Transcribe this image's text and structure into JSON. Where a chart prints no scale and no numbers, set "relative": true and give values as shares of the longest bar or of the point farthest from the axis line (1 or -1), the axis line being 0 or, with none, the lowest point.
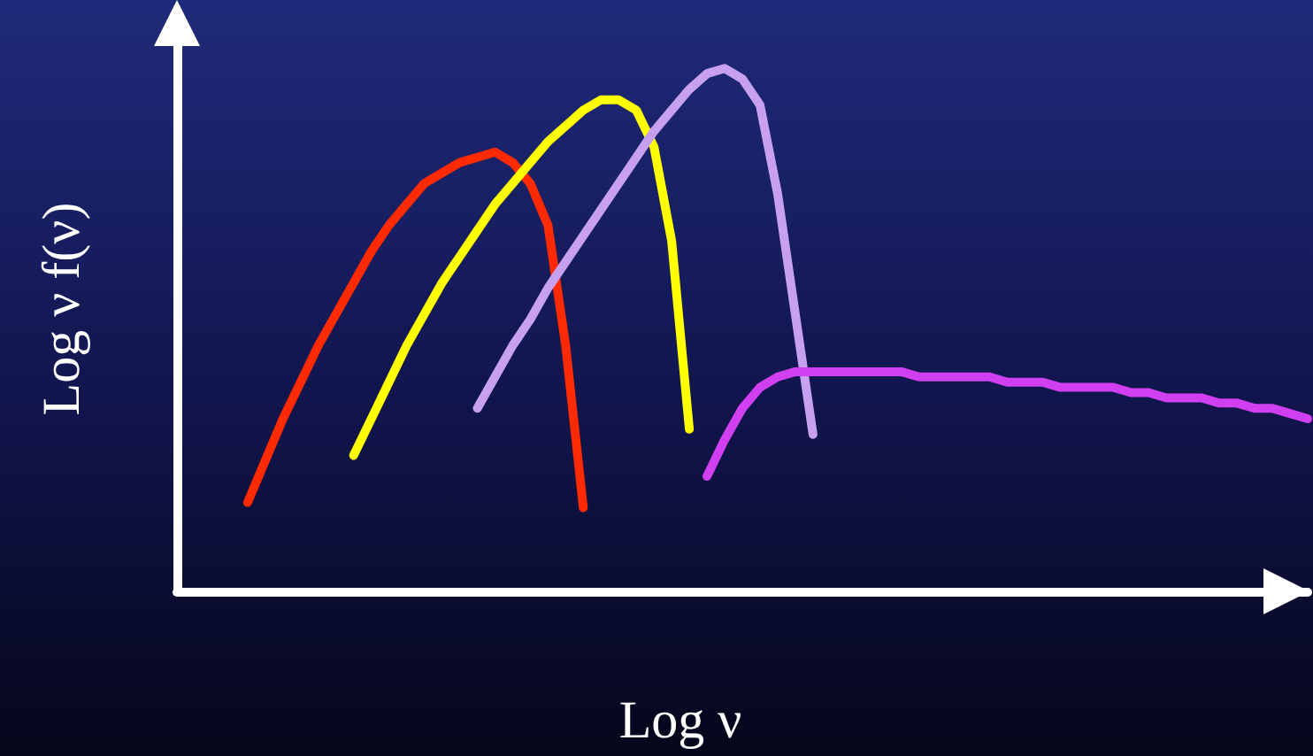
{
  "chart_data": {
    "type": "line",
    "relative": true,
    "xlabel": "Log ν",
    "ylabel": "Log ν f(ν)",
    "marker": "none",
    "categories": [
      null,
      null,
      null,
      null,
      null,
      null,
      null,
      null,
      null,
      null,
      null,
      null,
      null,
      null,
      null,
      null,
      null,
      null,
      null,
      null,
      null,
      null,
      null,
      null,
      null,
      null,
      null,
      null,
      null,
      null,
      null,
      null,
      null,
      null,
      null,
      null,
      null,
      null,
      null,
      null,
      null,
      null,
      null,
      null,
      null,
      null,
      null,
      null,
      null,
      null,
      null,
      null,
      null,
      null,
      null,
      null,
      null,
      null,
      null,
      null,
      null,
      null,
      null,
      null,
      null
    ],
    "series": [
      {
        "color": "#ff2a00",
        "values": [
          null,
          null,
          null,
          null,
          0.17,
          0.25,
          0.33,
          0.4,
          0.47,
          0.53,
          0.59,
          0.65,
          0.7,
          0.74,
          0.78,
          0.8,
          0.82,
          0.83,
          0.84,
          0.82,
          0.78,
          0.7,
          0.47,
          0.16,
          null,
          null,
          null,
          null,
          null,
          null,
          null,
          null,
          null,
          null,
          null,
          null,
          null,
          null,
          null,
          null,
          null,
          null,
          null,
          null,
          null,
          null,
          null,
          null,
          null,
          null,
          null,
          null,
          null,
          null,
          null,
          null,
          null,
          null,
          null,
          null,
          null,
          null,
          null,
          null,
          null
        ]
      },
      {
        "color": "#ffff00",
        "values": [
          null,
          null,
          null,
          null,
          null,
          null,
          null,
          null,
          null,
          null,
          0.26,
          0.33,
          0.4,
          0.47,
          0.53,
          0.59,
          0.64,
          0.69,
          0.74,
          0.78,
          0.82,
          0.86,
          0.89,
          0.92,
          0.94,
          0.94,
          0.92,
          0.85,
          0.67,
          0.31,
          null,
          null,
          null,
          null,
          null,
          null,
          null,
          null,
          null,
          null,
          null,
          null,
          null,
          null,
          null,
          null,
          null,
          null,
          null,
          null,
          null,
          null,
          null,
          null,
          null,
          null,
          null,
          null,
          null,
          null,
          null,
          null,
          null,
          null,
          null
        ]
      },
      {
        "color": "#c8a0f0",
        "values": [
          null,
          null,
          null,
          null,
          null,
          null,
          null,
          null,
          null,
          null,
          null,
          null,
          null,
          null,
          null,
          null,
          null,
          0.35,
          0.41,
          0.47,
          0.52,
          0.58,
          0.63,
          0.68,
          0.73,
          0.78,
          0.83,
          0.88,
          0.92,
          0.96,
          0.99,
          1.0,
          0.98,
          0.93,
          0.76,
          0.53,
          0.3,
          null,
          null,
          null,
          null,
          null,
          null,
          null,
          null,
          null,
          null,
          null,
          null,
          null,
          null,
          null,
          null,
          null,
          null,
          null,
          null,
          null,
          null,
          null,
          null,
          null,
          null,
          null,
          null
        ]
      },
      {
        "color": "#d040f0",
        "values": [
          null,
          null,
          null,
          null,
          null,
          null,
          null,
          null,
          null,
          null,
          null,
          null,
          null,
          null,
          null,
          null,
          null,
          null,
          null,
          null,
          null,
          null,
          null,
          null,
          null,
          null,
          null,
          null,
          null,
          null,
          0.22,
          0.29,
          0.35,
          0.39,
          0.41,
          0.42,
          0.42,
          0.42,
          0.42,
          0.42,
          0.42,
          0.42,
          0.41,
          0.41,
          0.41,
          0.41,
          0.41,
          0.4,
          0.4,
          0.4,
          0.39,
          0.39,
          0.39,
          0.39,
          0.38,
          0.38,
          0.37,
          0.37,
          0.37,
          0.36,
          0.36,
          0.35,
          0.35,
          0.34,
          0.33
        ]
      }
    ]
  }
}
